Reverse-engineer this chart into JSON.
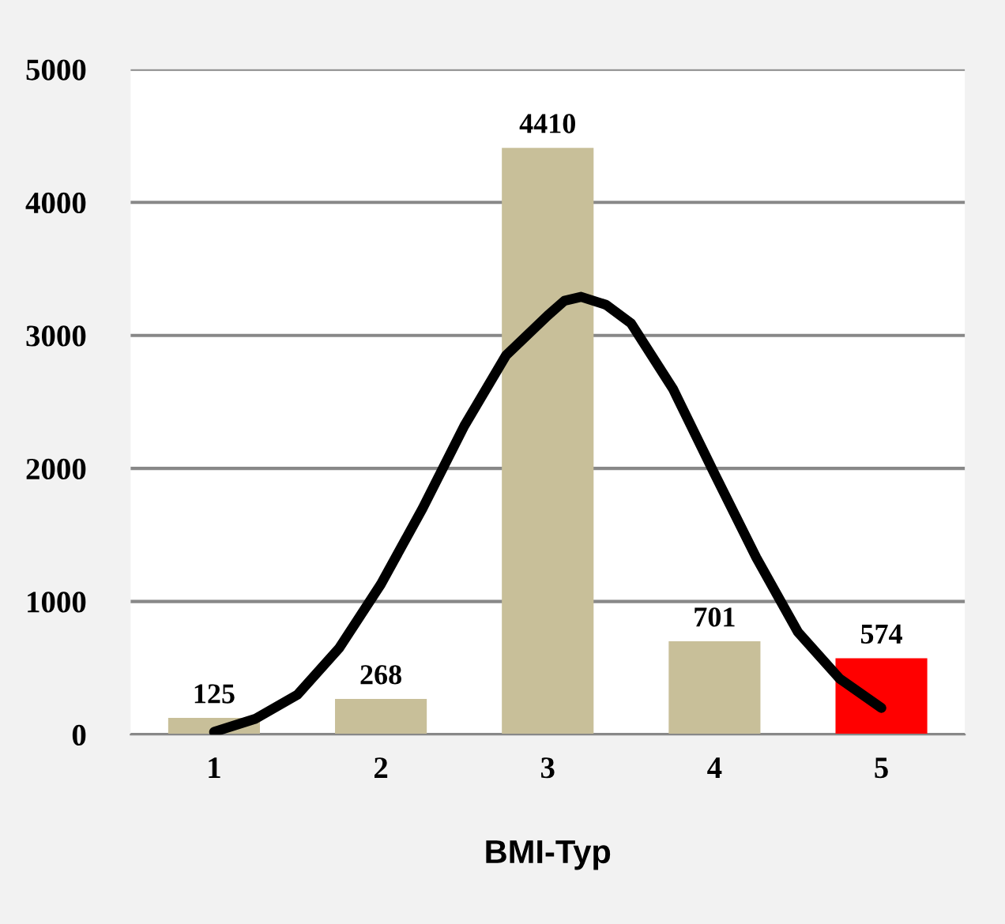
{
  "chart_data": {
    "type": "bar",
    "xlabel": "BMI-Typ",
    "x": [
      1,
      2,
      3,
      4,
      5
    ],
    "xlim": [
      0.5,
      5.5
    ],
    "xticks": [
      1,
      2,
      3,
      4,
      5
    ],
    "ylim": [
      0,
      5000
    ],
    "yticks": [
      0,
      1000,
      2000,
      3000,
      4000,
      5000
    ],
    "grid": "y",
    "series": [
      {
        "values": [
          125,
          268,
          4410,
          701,
          574
        ],
        "value_labels": [
          "125",
          "268",
          "4410",
          "701",
          "574"
        ],
        "colors": [
          "#c8bf99",
          "#c8bf99",
          "#c8bf99",
          "#c8bf99",
          "#ff0000"
        ]
      },
      {
        "type": "line",
        "color": "#000000",
        "x": [
          1,
          1.25,
          1.5,
          1.75,
          2,
          2.25,
          2.5,
          2.75,
          3,
          3.1,
          3.2,
          3.35,
          3.5,
          3.75,
          4,
          4.25,
          4.5,
          4.75,
          5
        ],
        "values": [
          20,
          120,
          300,
          650,
          1130,
          1700,
          2320,
          2850,
          3150,
          3260,
          3290,
          3230,
          3090,
          2600,
          1960,
          1330,
          770,
          420,
          200
        ]
      }
    ]
  }
}
